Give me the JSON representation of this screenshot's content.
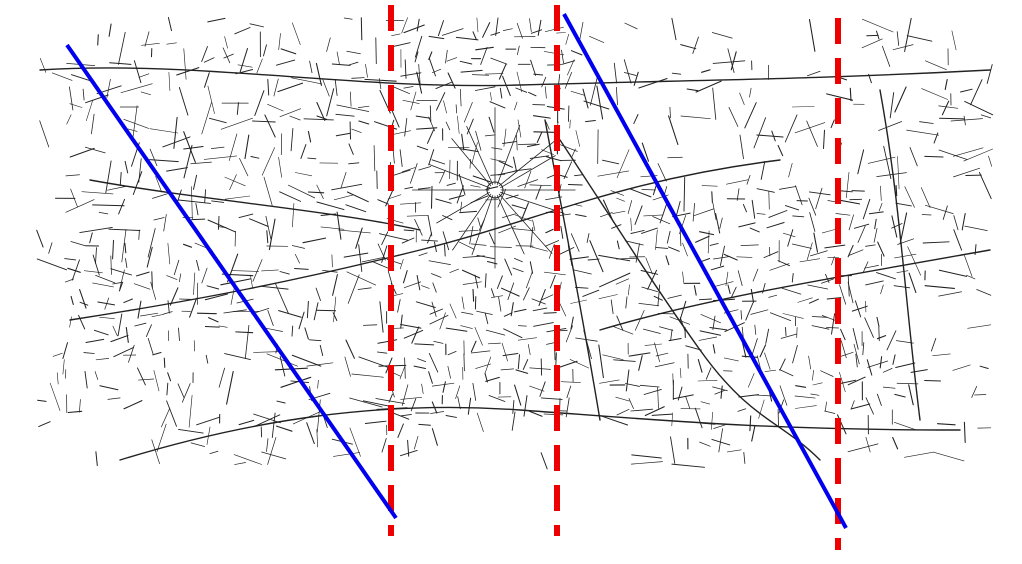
{
  "map": {
    "background": "#ffffff",
    "road_color": "#222222",
    "overlays": {
      "diagonal_lines": {
        "color": "#0000ee",
        "count": 2,
        "style": "solid"
      },
      "vertical_lines": {
        "color": "#ee0000",
        "count": 3,
        "style": "dashed"
      }
    }
  }
}
